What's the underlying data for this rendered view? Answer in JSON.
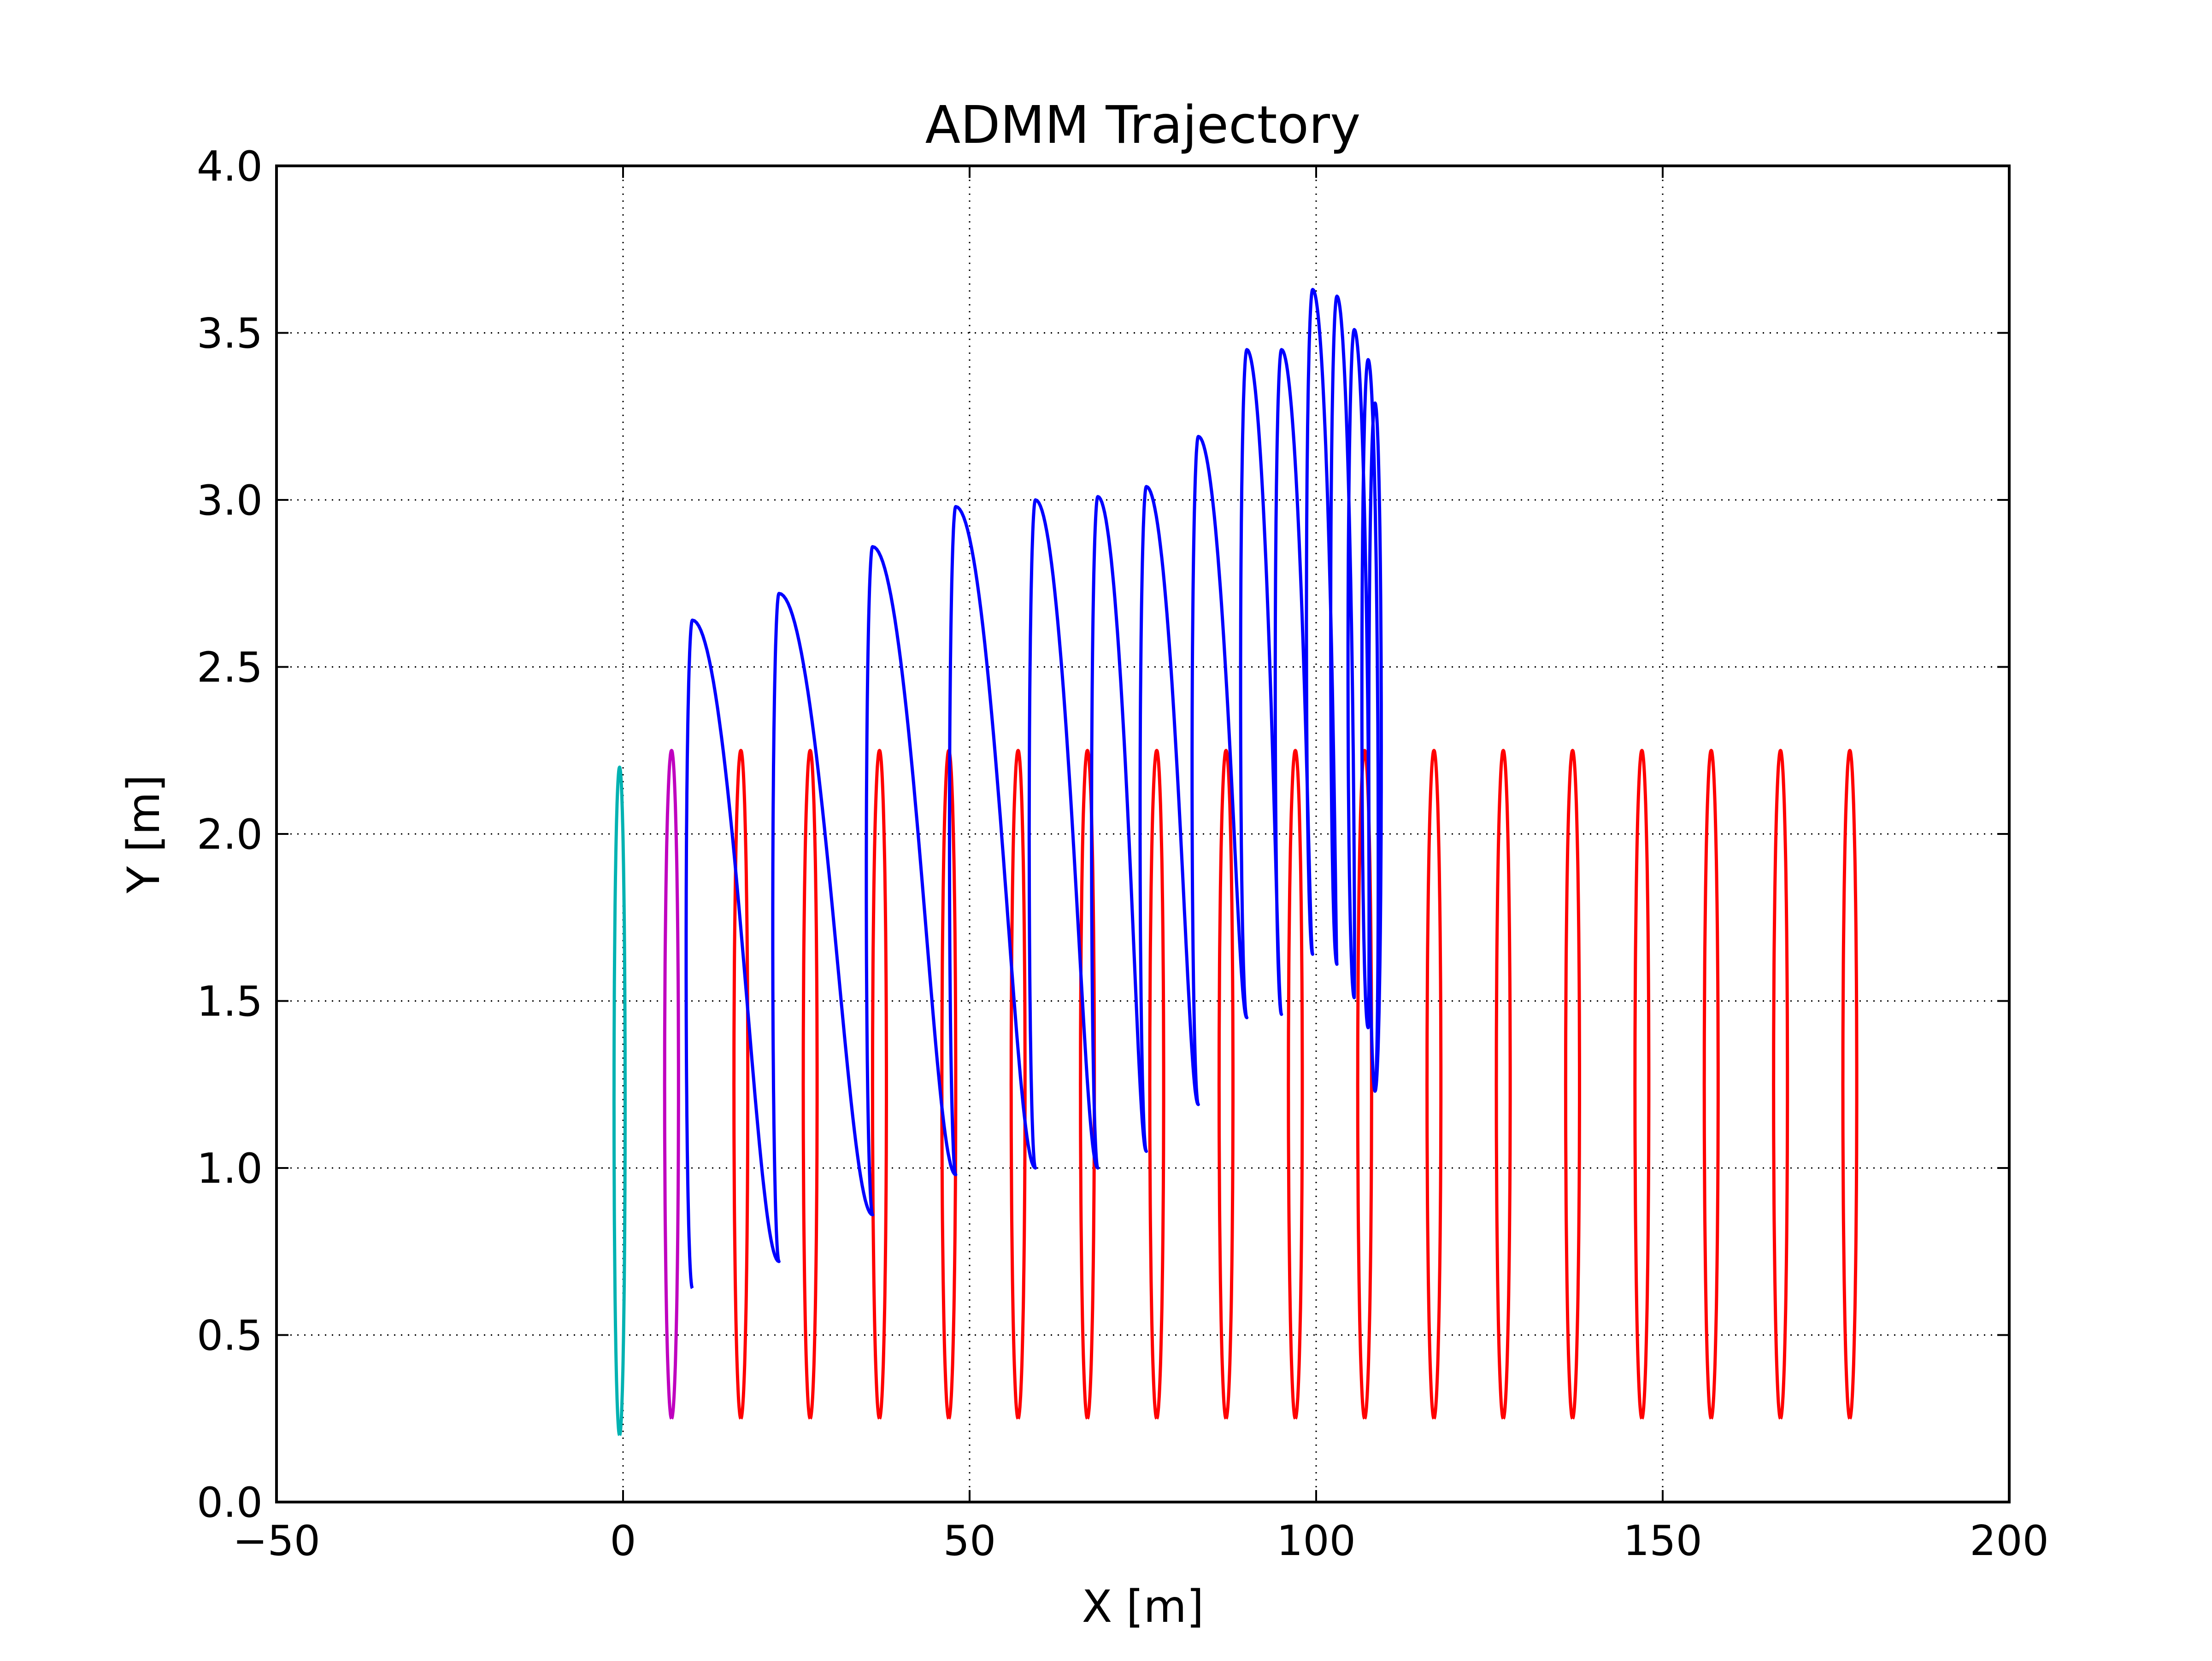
{
  "chart_data": {
    "type": "line",
    "title": "ADMM Trajectory",
    "xlabel": "X [m]",
    "ylabel": "Y [m]",
    "xlim": [
      -50,
      200
    ],
    "ylim": [
      0.0,
      4.0
    ],
    "xticks": [
      -50,
      0,
      50,
      100,
      150,
      200
    ],
    "xtick_labels": [
      "−50",
      "0",
      "50",
      "100",
      "150",
      "200"
    ],
    "yticks": [
      0.0,
      0.5,
      1.0,
      1.5,
      2.0,
      2.5,
      3.0,
      3.5,
      4.0
    ],
    "ytick_labels": [
      "0.0",
      "0.5",
      "1.0",
      "1.5",
      "2.0",
      "2.5",
      "3.0",
      "3.5",
      "4.0"
    ],
    "grid": true,
    "grid_style": "dotted",
    "series": [
      {
        "color": "#00b2b2",
        "style": "oscillation",
        "centers": [
          -0.5
        ],
        "lows": [
          0.2
        ],
        "highs": [
          2.2
        ],
        "half_width": 0.8
      },
      {
        "color": "#bf00bf",
        "style": "oscillation",
        "centers": [
          7
        ],
        "lows": [
          0.25
        ],
        "highs": [
          2.25
        ],
        "half_width": 1.0
      },
      {
        "color": "#ff0000",
        "style": "oscillation",
        "centers": [
          17,
          27,
          37,
          47,
          57,
          67,
          77,
          87,
          97,
          107,
          117,
          127,
          137,
          147,
          157,
          167,
          177
        ],
        "lows": [
          0.25,
          0.25,
          0.25,
          0.25,
          0.25,
          0.25,
          0.25,
          0.25,
          0.25,
          0.25,
          0.25,
          0.25,
          0.25,
          0.25,
          0.25,
          0.25,
          0.25
        ],
        "highs": [
          2.25,
          2.25,
          2.25,
          2.25,
          2.25,
          2.25,
          2.25,
          2.25,
          2.25,
          2.25,
          2.25,
          2.25,
          2.25,
          2.25,
          2.25,
          2.25,
          2.25
        ],
        "half_width": 1.0
      },
      {
        "color": "#0000ff",
        "style": "wave",
        "x": [
          10,
          22.5,
          36,
          48,
          59.5,
          68.5,
          75.5,
          83,
          90,
          95,
          99.5,
          103,
          105.5,
          107.5,
          108.5
        ],
        "y": [
          0.64,
          0.72,
          0.86,
          0.98,
          1.0,
          1.0,
          1.05,
          1.19,
          1.45,
          1.46,
          1.64,
          1.61,
          1.51,
          1.42,
          1.23
        ],
        "peaks_x": [
          10,
          22.5,
          36,
          48,
          59.5,
          68.5,
          75.5,
          83,
          90,
          95,
          99.5,
          103,
          105.5,
          107.5,
          108.5
        ],
        "peaks_y": [
          2.64,
          2.72,
          2.86,
          2.98,
          3.0,
          3.01,
          3.04,
          3.19,
          3.45,
          3.45,
          3.63,
          3.61,
          3.51,
          3.42,
          3.29
        ]
      }
    ]
  }
}
